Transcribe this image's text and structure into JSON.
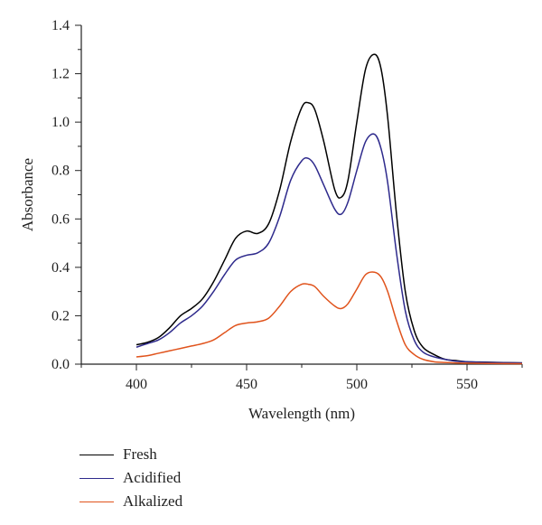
{
  "chart_data": {
    "type": "line",
    "title": "",
    "xlabel": "Wavelength (nm)",
    "ylabel": "Absorbance",
    "xlim": [
      375,
      575
    ],
    "ylim": [
      0,
      1.4
    ],
    "x_ticks": [
      400,
      450,
      500,
      550
    ],
    "y_ticks": [
      0.0,
      0.2,
      0.4,
      0.6,
      0.8,
      1.0,
      1.2,
      1.4
    ],
    "x_tick_labels": [
      "400",
      "450",
      "500",
      "550"
    ],
    "y_tick_labels": [
      "0.0",
      "0.2",
      "0.4",
      "0.6",
      "0.8",
      "1.0",
      "1.2",
      "1.4"
    ],
    "grid": false,
    "legend_position": "bottom-left",
    "series": [
      {
        "name": "Fresh",
        "color": "#000000",
        "x": [
          400,
          405,
          410,
          415,
          420,
          425,
          430,
          435,
          440,
          445,
          450,
          455,
          460,
          465,
          470,
          475,
          478,
          481,
          485,
          490,
          493,
          496,
          500,
          504,
          508,
          511,
          514,
          518,
          522,
          526,
          530,
          535,
          540,
          545,
          550,
          560,
          575
        ],
        "y": [
          0.08,
          0.09,
          0.11,
          0.15,
          0.2,
          0.23,
          0.27,
          0.34,
          0.43,
          0.52,
          0.55,
          0.54,
          0.58,
          0.72,
          0.92,
          1.06,
          1.08,
          1.05,
          0.92,
          0.72,
          0.69,
          0.76,
          1.0,
          1.22,
          1.28,
          1.22,
          1.02,
          0.62,
          0.3,
          0.14,
          0.07,
          0.04,
          0.02,
          0.015,
          0.01,
          0.008,
          0.005
        ]
      },
      {
        "name": "Acidified",
        "color": "#2e2a8c",
        "x": [
          400,
          405,
          410,
          415,
          420,
          425,
          430,
          435,
          440,
          445,
          450,
          455,
          460,
          465,
          470,
          475,
          478,
          481,
          485,
          490,
          493,
          496,
          500,
          504,
          508,
          511,
          514,
          518,
          522,
          526,
          530,
          535,
          540,
          545,
          550,
          560,
          575
        ],
        "y": [
          0.07,
          0.085,
          0.1,
          0.13,
          0.17,
          0.2,
          0.24,
          0.3,
          0.37,
          0.43,
          0.45,
          0.46,
          0.5,
          0.61,
          0.76,
          0.84,
          0.85,
          0.82,
          0.74,
          0.64,
          0.62,
          0.67,
          0.8,
          0.92,
          0.95,
          0.89,
          0.75,
          0.46,
          0.22,
          0.1,
          0.05,
          0.03,
          0.02,
          0.012,
          0.01,
          0.007,
          0.005
        ]
      },
      {
        "name": "Alkalized",
        "color": "#e0531c",
        "x": [
          400,
          405,
          410,
          415,
          420,
          425,
          430,
          435,
          440,
          445,
          450,
          455,
          460,
          465,
          470,
          475,
          478,
          481,
          485,
          490,
          493,
          496,
          500,
          504,
          508,
          511,
          514,
          518,
          522,
          526,
          530,
          535,
          540,
          545,
          550,
          560,
          575
        ],
        "y": [
          0.03,
          0.035,
          0.045,
          0.055,
          0.065,
          0.075,
          0.085,
          0.1,
          0.13,
          0.16,
          0.17,
          0.175,
          0.19,
          0.24,
          0.3,
          0.33,
          0.33,
          0.32,
          0.28,
          0.24,
          0.23,
          0.25,
          0.31,
          0.37,
          0.38,
          0.36,
          0.3,
          0.18,
          0.08,
          0.04,
          0.02,
          0.01,
          0.007,
          0.005,
          0.004,
          0.003,
          0.002
        ]
      }
    ]
  }
}
